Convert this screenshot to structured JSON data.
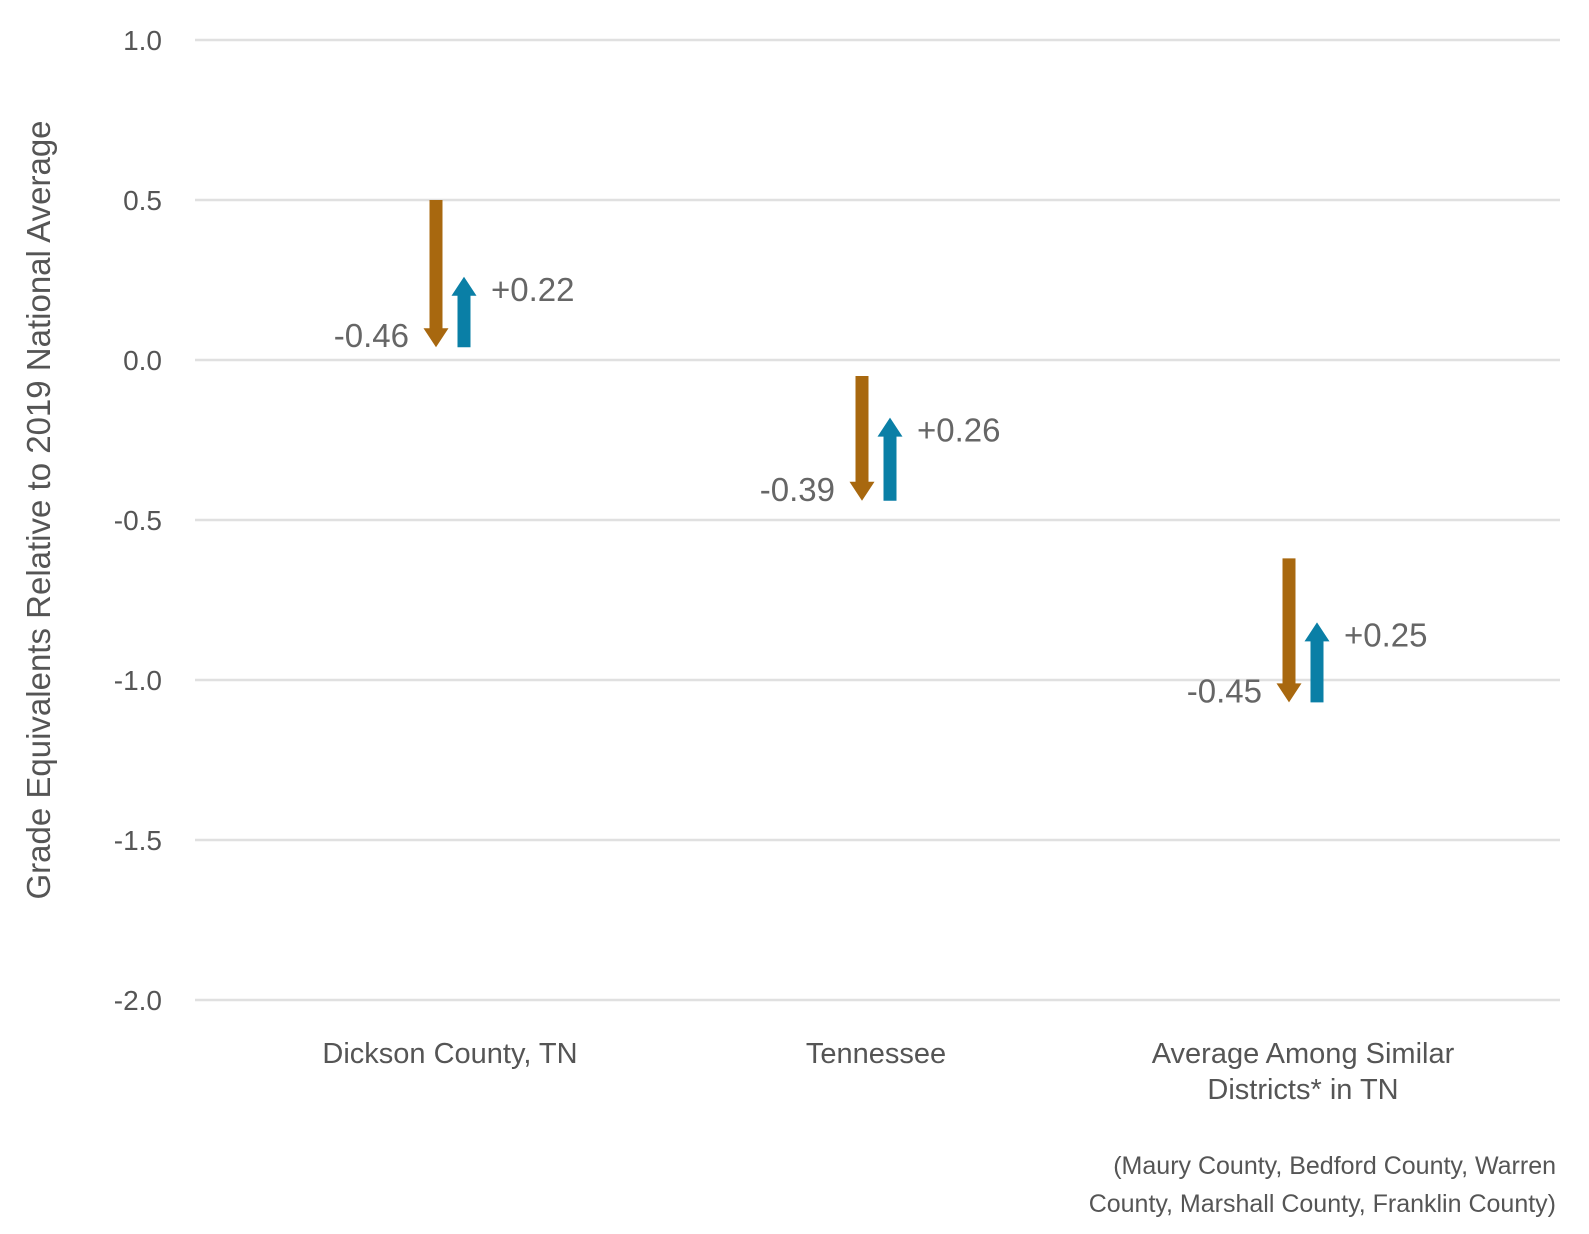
{
  "chart_data": {
    "type": "arrow",
    "ylabel": "Grade Equivalents Relative to 2019 National Average",
    "ylim": [
      -2.0,
      1.0
    ],
    "yticks": [
      "1.0",
      "0.5",
      "0.0",
      "-0.5",
      "-1.0",
      "-1.5",
      "-2.0"
    ],
    "ytick_values": [
      1.0,
      0.5,
      0.0,
      -0.5,
      -1.0,
      -1.5,
      -2.0
    ],
    "grid": true,
    "categories": [
      {
        "label_lines": [
          "Dickson County, TN"
        ],
        "decline": {
          "start": 0.5,
          "end": 0.04,
          "label": "-0.46"
        },
        "recovery": {
          "start": 0.04,
          "end": 0.26,
          "label": "+0.22"
        }
      },
      {
        "label_lines": [
          "Tennessee"
        ],
        "decline": {
          "start": -0.05,
          "end": -0.44,
          "label": "-0.39"
        },
        "recovery": {
          "start": -0.44,
          "end": -0.18,
          "label": "+0.26"
        }
      },
      {
        "label_lines": [
          "Average Among Similar",
          "Districts* in TN"
        ],
        "decline": {
          "start": -0.62,
          "end": -1.07,
          "label": "-0.45"
        },
        "recovery": {
          "start": -1.07,
          "end": -0.82,
          "label": "+0.25"
        }
      }
    ],
    "colors": {
      "decline": "#A8680F",
      "recovery": "#0A7FA6",
      "grid": "#E0E0E0"
    },
    "footnote_lines": [
      "(Maury County, Bedford County, Warren",
      "County, Marshall County, Franklin County)"
    ]
  }
}
